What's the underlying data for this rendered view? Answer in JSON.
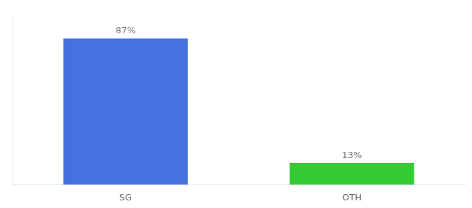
{
  "chart_data": {
    "type": "bar",
    "categories": [
      "SG",
      "OTH"
    ],
    "values": [
      87,
      13
    ],
    "colors": [
      "#4472e0",
      "#33cc33"
    ],
    "value_labels": [
      "87%",
      "13%"
    ],
    "data_labels": true,
    "ylim": [
      0,
      100
    ],
    "tick_labels": "x",
    "grid": false
  }
}
